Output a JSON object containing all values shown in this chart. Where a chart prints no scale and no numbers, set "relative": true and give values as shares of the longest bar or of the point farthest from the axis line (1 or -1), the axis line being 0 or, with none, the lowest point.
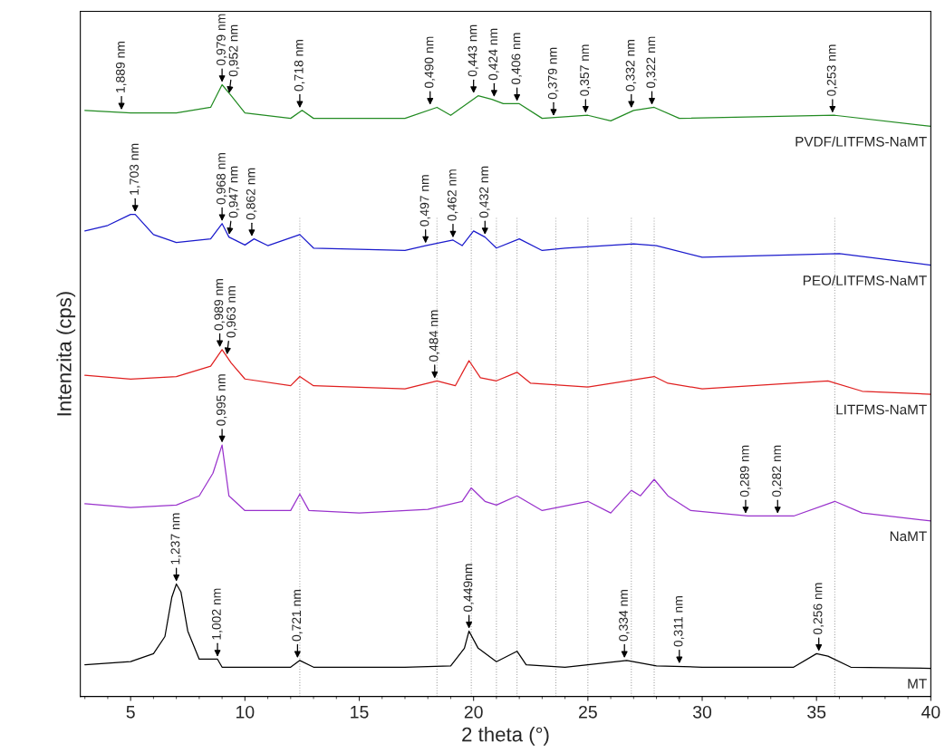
{
  "chart_data": {
    "type": "line",
    "relative": true,
    "xlabel": "2 theta (°)",
    "ylabel": "Intenzita (cps)",
    "xlim": [
      2.8,
      40
    ],
    "xticks": [
      5,
      10,
      15,
      20,
      25,
      30,
      35,
      40
    ],
    "grid": false,
    "legend": false,
    "marker": "none",
    "line_style": "solid",
    "series": [
      {
        "name": "MT",
        "color": "#000000",
        "x": [
          3,
          5,
          6,
          6.5,
          6.8,
          7.0,
          7.2,
          7.5,
          8,
          8.8,
          9,
          10,
          12,
          12.4,
          13,
          15,
          17,
          19,
          19.6,
          19.8,
          20.2,
          21,
          21.9,
          22.3,
          24,
          25,
          26.7,
          28,
          30,
          34,
          35,
          35.5,
          36.5,
          40
        ],
        "values": [
          0.052,
          0.057,
          0.07,
          0.098,
          0.162,
          0.184,
          0.171,
          0.107,
          0.061,
          0.061,
          0.048,
          0.048,
          0.048,
          0.059,
          0.048,
          0.048,
          0.048,
          0.05,
          0.079,
          0.107,
          0.079,
          0.057,
          0.074,
          0.052,
          0.048,
          0.052,
          0.059,
          0.05,
          0.048,
          0.048,
          0.07,
          0.066,
          0.048,
          0.046
        ]
      },
      {
        "name": "NaMT",
        "color": "#9932cc",
        "x": [
          3,
          5,
          7,
          8,
          8.6,
          9.0,
          9.3,
          10,
          12,
          12.4,
          12.8,
          15,
          18,
          19.5,
          19.9,
          20.5,
          21,
          21.9,
          23,
          25,
          26,
          26.9,
          27.3,
          27.9,
          28.5,
          29.5,
          32,
          34,
          35.8,
          37,
          40
        ],
        "values": [
          0.315,
          0.309,
          0.313,
          0.328,
          0.365,
          0.411,
          0.328,
          0.304,
          0.304,
          0.331,
          0.304,
          0.3,
          0.306,
          0.319,
          0.341,
          0.319,
          0.313,
          0.328,
          0.304,
          0.319,
          0.3,
          0.337,
          0.328,
          0.355,
          0.328,
          0.304,
          0.295,
          0.295,
          0.319,
          0.3,
          0.287
        ]
      },
      {
        "name": "LITFMS-NaMT",
        "color": "#e02020",
        "x": [
          3,
          5,
          7,
          8.5,
          9.0,
          9.4,
          10,
          12,
          12.4,
          13,
          17,
          18.4,
          19.2,
          19.8,
          20.3,
          21,
          21.9,
          22.5,
          25,
          27.9,
          28.5,
          30,
          35.5,
          37,
          40
        ],
        "values": [
          0.525,
          0.519,
          0.523,
          0.54,
          0.567,
          0.545,
          0.519,
          0.508,
          0.523,
          0.508,
          0.503,
          0.516,
          0.508,
          0.549,
          0.521,
          0.516,
          0.53,
          0.512,
          0.506,
          0.523,
          0.512,
          0.503,
          0.516,
          0.499,
          0.494
        ]
      },
      {
        "name": "PEO/LITFMS-NaMT",
        "color": "#1a1acc",
        "x": [
          3,
          4,
          5,
          5.2,
          6,
          7,
          8.5,
          9.0,
          9.3,
          10,
          10.4,
          11,
          12.4,
          13,
          17,
          17.9,
          19.1,
          19.5,
          20,
          20.5,
          21,
          22,
          23,
          24,
          27,
          28,
          30,
          36,
          40
        ],
        "values": [
          0.761,
          0.77,
          0.788,
          0.788,
          0.755,
          0.742,
          0.748,
          0.773,
          0.751,
          0.738,
          0.748,
          0.737,
          0.755,
          0.733,
          0.729,
          0.737,
          0.746,
          0.737,
          0.761,
          0.751,
          0.733,
          0.748,
          0.729,
          0.733,
          0.74,
          0.737,
          0.718,
          0.724,
          0.705
        ]
      },
      {
        "name": "PVDF/LITFMS-NaMT",
        "color": "#228b22",
        "x": [
          3,
          5,
          7,
          8.5,
          9.0,
          9.4,
          10,
          12,
          12.5,
          13,
          17,
          18.4,
          19,
          20.2,
          20.8,
          21.3,
          22,
          23,
          25,
          26,
          27,
          27.9,
          29,
          35.8,
          40
        ],
        "values": [
          0.958,
          0.954,
          0.954,
          0.963,
          1.0,
          0.982,
          0.954,
          0.945,
          0.958,
          0.945,
          0.945,
          0.963,
          0.95,
          0.982,
          0.976,
          0.969,
          0.969,
          0.945,
          0.95,
          0.941,
          0.958,
          0.963,
          0.945,
          0.95,
          0.932
        ]
      }
    ],
    "ref_lines": [
      {
        "axis": "x",
        "value": 12.4,
        "color": "#aaaaaa",
        "line_style": "dotted"
      },
      {
        "axis": "x",
        "value": 18.4,
        "color": "#aaaaaa",
        "line_style": "dotted"
      },
      {
        "axis": "x",
        "value": 19.9,
        "color": "#aaaaaa",
        "line_style": "dotted"
      },
      {
        "axis": "x",
        "value": 21.0,
        "color": "#aaaaaa",
        "line_style": "dotted"
      },
      {
        "axis": "x",
        "value": 21.9,
        "color": "#aaaaaa",
        "line_style": "dotted"
      },
      {
        "axis": "x",
        "value": 23.6,
        "color": "#aaaaaa",
        "line_style": "dotted"
      },
      {
        "axis": "x",
        "value": 25.0,
        "color": "#aaaaaa",
        "line_style": "dotted"
      },
      {
        "axis": "x",
        "value": 26.9,
        "color": "#aaaaaa",
        "line_style": "dotted"
      },
      {
        "axis": "x",
        "value": 27.9,
        "color": "#aaaaaa",
        "line_style": "dotted"
      },
      {
        "axis": "x",
        "value": 35.8,
        "color": "#aaaaaa",
        "line_style": "dotted"
      }
    ],
    "annotations": [
      {
        "text": "1,889 nm",
        "x": 4.6,
        "y": 0.955
      },
      {
        "text": "0,979 nm",
        "x": 9.0,
        "y": 1.0
      },
      {
        "text": "0,952 nm",
        "x": 9.3,
        "y": 0.982
      },
      {
        "text": "0,718 nm",
        "x": 12.4,
        "y": 0.958
      },
      {
        "text": "0,490 nm",
        "x": 18.1,
        "y": 0.963
      },
      {
        "text": "0,443 nm",
        "x": 20.0,
        "y": 0.982
      },
      {
        "text": "0,424 nm",
        "x": 20.9,
        "y": 0.976
      },
      {
        "text": "0,406 nm",
        "x": 21.9,
        "y": 0.969
      },
      {
        "text": "0,379 nm",
        "x": 23.5,
        "y": 0.945
      },
      {
        "text": "0,357 nm",
        "x": 24.9,
        "y": 0.95
      },
      {
        "text": "0,332 nm",
        "x": 26.9,
        "y": 0.958
      },
      {
        "text": "0,322 nm",
        "x": 27.8,
        "y": 0.963
      },
      {
        "text": "0,253 nm",
        "x": 35.7,
        "y": 0.95
      },
      {
        "text": "1,703 nm",
        "x": 5.2,
        "y": 0.788
      },
      {
        "text": "0,968 nm",
        "x": 9.0,
        "y": 0.773
      },
      {
        "text": "0,947 nm",
        "x": 9.3,
        "y": 0.751
      },
      {
        "text": "0,862 nm",
        "x": 10.3,
        "y": 0.748
      },
      {
        "text": "0,497 nm",
        "x": 17.9,
        "y": 0.737
      },
      {
        "text": "0,462 nm",
        "x": 19.1,
        "y": 0.746
      },
      {
        "text": "0,432 nm",
        "x": 20.5,
        "y": 0.751
      },
      {
        "text": "0,989 nm",
        "x": 8.9,
        "y": 0.567
      },
      {
        "text": "0,963 nm",
        "x": 9.2,
        "y": 0.555
      },
      {
        "text": "0,484 nm",
        "x": 18.3,
        "y": 0.516
      },
      {
        "text": "0,995 nm",
        "x": 9.0,
        "y": 0.411
      },
      {
        "text": "0,289 nm",
        "x": 31.9,
        "y": 0.295
      },
      {
        "text": "0,282 nm",
        "x": 33.3,
        "y": 0.295
      },
      {
        "text": "1,237 nm",
        "x": 7.0,
        "y": 0.184
      },
      {
        "text": "1,002 nm",
        "x": 8.8,
        "y": 0.061
      },
      {
        "text": "0,721 nm",
        "x": 12.3,
        "y": 0.059
      },
      {
        "text": "0,449nm",
        "x": 19.8,
        "y": 0.107
      },
      {
        "text": "0,334 nm",
        "x": 26.6,
        "y": 0.059
      },
      {
        "text": "0,311 nm",
        "x": 29.0,
        "y": 0.05
      },
      {
        "text": "0,256 nm",
        "x": 35.1,
        "y": 0.07
      }
    ]
  }
}
